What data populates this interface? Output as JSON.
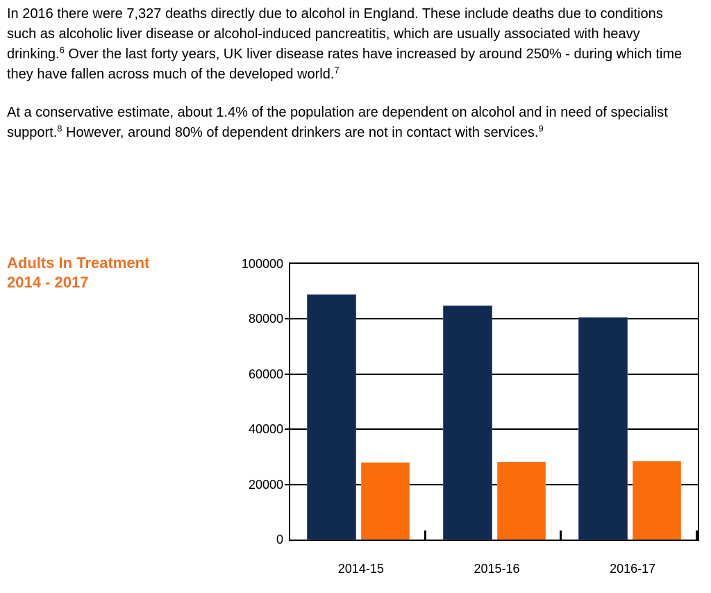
{
  "page": {
    "background": "#ffffff",
    "text_color": "#000000"
  },
  "paragraphs": [
    {
      "segments": [
        {
          "text": "In 2016 there were 7,327 deaths directly due to alcohol in England. These include deaths due to conditions such as alcoholic liver disease or alcohol-induced pancreatitis, which are usually associated with heavy drinking."
        },
        {
          "sup": "6"
        },
        {
          "text": " Over the last forty years, UK liver disease rates have increased by around 250% - during which time they have fallen across much of the developed world."
        },
        {
          "sup": "7"
        }
      ]
    },
    {
      "segments": [
        {
          "text": "At a conservative estimate, about 1.4% of the population are dependent on alcohol and in need of specialist support."
        },
        {
          "sup": "8"
        },
        {
          "text": " However, around 80% of dependent drinkers are not in contact with services."
        },
        {
          "sup": "9"
        }
      ]
    }
  ],
  "chart_heading": {
    "line1": "Adults In Treatment",
    "line2": "2014 - 2017",
    "color": "#ED7124"
  },
  "chart_data": {
    "type": "bar",
    "title": "Adults In Treatment 2014 - 2017",
    "categories": [
      "2014-15",
      "2015-16",
      "2016-17"
    ],
    "series": [
      {
        "name": "navy",
        "color": "#112A52",
        "edge_color": "#44587E",
        "values": [
          89000,
          85000,
          80500
        ]
      },
      {
        "name": "orange",
        "color": "#FB6C0A",
        "edge_color": "#FC8B3D",
        "values": [
          28000,
          28300,
          28400
        ]
      }
    ],
    "xlabel": "",
    "ylabel": "",
    "ylim": [
      0,
      100000
    ],
    "yticks": [
      0,
      20000,
      40000,
      60000,
      80000,
      100000
    ],
    "grid": true,
    "legend": "none",
    "axis_color": "#000000"
  }
}
